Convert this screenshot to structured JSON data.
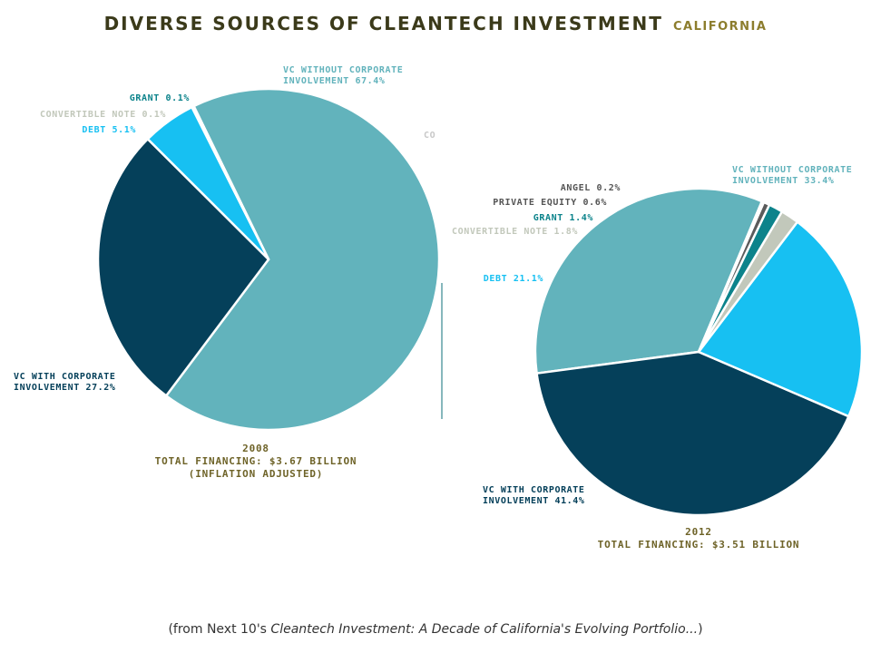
{
  "title": {
    "main": "DIVERSE SOURCES OF CLEANTECH INVESTMENT",
    "sub": "CALIFORNIA"
  },
  "stray_label": "CO",
  "source": {
    "prefix": "(from Next 10's ",
    "title": "Cleantech Investment: A Decade of California's Evolving Portfolio...",
    "suffix": ")"
  },
  "colors": {
    "vc_without": "#62b3bc",
    "vc_with": "#05405a",
    "debt": "#17c0f2",
    "convertible": "#c2c8bb",
    "grant": "#0c838b",
    "private_equity": "#5b5b5b",
    "angel": "#8a8a8a",
    "caption": "#6e6328"
  },
  "chart_data": [
    {
      "type": "pie",
      "title": "2008",
      "caption": [
        "2008",
        "TOTAL FINANCING: $3.67 BILLION",
        "(INFLATION ADJUSTED)"
      ],
      "slices": [
        {
          "name": "VC WITHOUT CORPORATE INVOLVEMENT",
          "value": 67.4,
          "label": [
            "VC WITHOUT CORPORATE",
            "INVOLVEMENT 67.4%"
          ],
          "color": "#62b3bc"
        },
        {
          "name": "VC WITH CORPORATE INVOLVEMENT",
          "value": 27.2,
          "label": [
            "VC WITH CORPORATE",
            "INVOLVEMENT 27.2%"
          ],
          "color": "#05405a"
        },
        {
          "name": "DEBT",
          "value": 5.1,
          "label": [
            "DEBT 5.1%"
          ],
          "color": "#17c0f2"
        },
        {
          "name": "CONVERTIBLE NOTE",
          "value": 0.1,
          "label": [
            "CONVERTIBLE NOTE 0.1%"
          ],
          "color": "#c2c8bb"
        },
        {
          "name": "GRANT",
          "value": 0.1,
          "label": [
            "GRANT 0.1%"
          ],
          "color": "#0c838b"
        }
      ]
    },
    {
      "type": "pie",
      "title": "2012",
      "caption": [
        "2012",
        "TOTAL FINANCING: $3.51 BILLION"
      ],
      "slices": [
        {
          "name": "VC WITHOUT CORPORATE INVOLVEMENT",
          "value": 33.4,
          "label": [
            "VC WITHOUT CORPORATE",
            "INVOLVEMENT 33.4%"
          ],
          "color": "#62b3bc"
        },
        {
          "name": "VC WITH CORPORATE INVOLVEMENT",
          "value": 41.4,
          "label": [
            "VC WITH CORPORATE",
            "INVOLVEMENT 41.4%"
          ],
          "color": "#05405a"
        },
        {
          "name": "DEBT",
          "value": 21.1,
          "label": [
            "DEBT 21.1%"
          ],
          "color": "#17c0f2"
        },
        {
          "name": "CONVERTIBLE NOTE",
          "value": 1.8,
          "label": [
            "CONVERTIBLE NOTE 1.8%"
          ],
          "color": "#c2c8bb"
        },
        {
          "name": "GRANT",
          "value": 1.4,
          "label": [
            "GRANT 1.4%"
          ],
          "color": "#0c838b"
        },
        {
          "name": "PRIVATE EQUITY",
          "value": 0.6,
          "label": [
            "PRIVATE EQUITY 0.6%"
          ],
          "color": "#5b5b5b"
        },
        {
          "name": "ANGEL",
          "value": 0.2,
          "label": [
            "ANGEL 0.2%"
          ],
          "color": "#8a8a8a"
        }
      ]
    }
  ]
}
